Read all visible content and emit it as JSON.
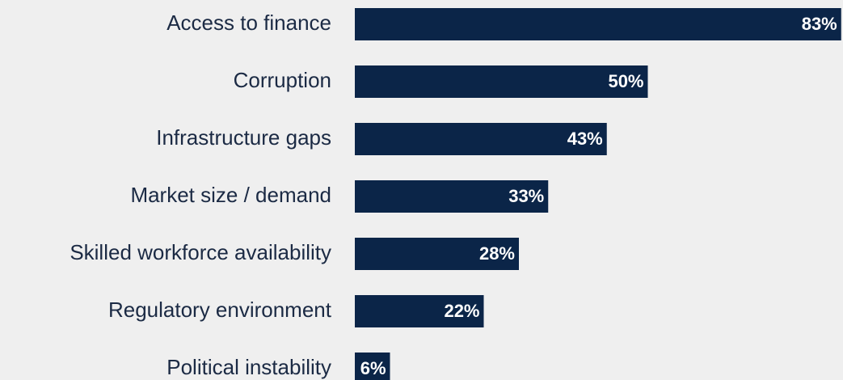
{
  "chart_data": {
    "type": "bar",
    "orientation": "horizontal",
    "categories": [
      "Access to finance",
      "Corruption",
      "Infrastructure gaps",
      "Market size / demand",
      "Skilled workforce availability",
      "Regulatory environment",
      "Political instability"
    ],
    "values": [
      83,
      50,
      43,
      33,
      28,
      22,
      6
    ],
    "value_labels": [
      "83%",
      "50%",
      "43%",
      "33%",
      "28%",
      "22%",
      "6%"
    ],
    "color": "#0b2548"
  }
}
